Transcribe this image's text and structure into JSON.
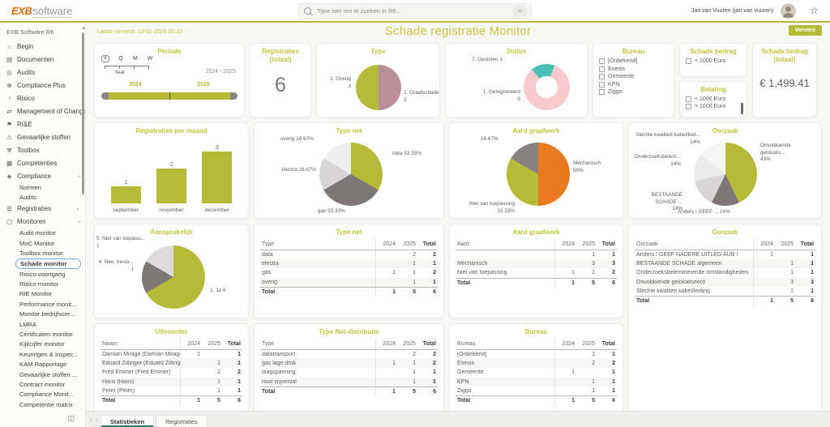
{
  "header": {
    "logo_exb": "EXB",
    "logo_software": "software",
    "search_placeholder": "Type hier om te zoeken in R6...",
    "user_name": "Jan van Vuuren (jan van vuuren)"
  },
  "sidebar": {
    "title": "EXB Software R6",
    "items": [
      {
        "label": "Begin",
        "icon": "home",
        "level": 0
      },
      {
        "label": "Documenten",
        "icon": "document",
        "level": 0
      },
      {
        "label": "Audits",
        "icon": "audit",
        "level": 0
      },
      {
        "label": "Compliance Plus",
        "icon": "compliance-plus",
        "level": 0
      },
      {
        "label": "Risico",
        "icon": "risk",
        "level": 0
      },
      {
        "label": "Management of Change",
        "icon": "moc",
        "level": 0
      },
      {
        "label": "RI&E",
        "icon": "rie",
        "level": 0
      },
      {
        "label": "Gevaarlijke stoffen",
        "icon": "hazard",
        "level": 0
      },
      {
        "label": "Toolbox",
        "icon": "toolbox",
        "level": 0
      },
      {
        "label": "Competenties",
        "icon": "competences",
        "level": 0
      },
      {
        "label": "Compliance",
        "icon": "compliance",
        "level": 0,
        "chevron": "down"
      },
      {
        "label": "Normen",
        "level": 1
      },
      {
        "label": "Audits",
        "level": 1
      },
      {
        "label": "Registraties",
        "icon": "registrations",
        "level": 0,
        "chevron": "right"
      },
      {
        "label": "Monitoren",
        "icon": "monitors",
        "level": 0,
        "chevron": "down"
      },
      {
        "label": "Audit monitor",
        "level": 1
      },
      {
        "label": "MoC Monitor",
        "level": 1
      },
      {
        "label": "Toolbox monitor",
        "level": 1
      },
      {
        "label": "Schade monitor",
        "level": 1,
        "selected": true
      },
      {
        "label": "Risico voortgang",
        "level": 1
      },
      {
        "label": "Risico monitor",
        "level": 1
      },
      {
        "label": "RIE Monitor",
        "level": 1
      },
      {
        "label": "Performance monit...",
        "level": 1
      },
      {
        "label": "Monitor bedrijfscer...",
        "level": 1
      },
      {
        "label": "LMRA",
        "level": 1
      },
      {
        "label": "Certificaten monitor",
        "level": 1
      },
      {
        "label": "Kijkcijfer monitor",
        "level": 1
      },
      {
        "label": "Keuringen & Inspec...",
        "level": 1
      },
      {
        "label": "KAM Rapportage",
        "level": 1
      },
      {
        "label": "Gevaarlijke stoffen ...",
        "level": 1
      },
      {
        "label": "Contract monitor",
        "level": 1
      },
      {
        "label": "Compliance Monit...",
        "level": 1
      },
      {
        "label": "Competentie matrix",
        "level": 1
      }
    ]
  },
  "main": {
    "last_refreshed": "Laatst ververst: 19-01-2026 00:15",
    "title": "Schade registratie Monitor",
    "refresh": "Ververs"
  },
  "periode": {
    "title": "Periode",
    "scales": [
      "Y",
      "Q",
      "M",
      "W"
    ],
    "selected_scale": "Y",
    "scale_label": "Year",
    "range": "2024 - 2025",
    "left_year": "2024",
    "right_year": "2025"
  },
  "registraties_totaal": {
    "title": "Registraties (totaal)",
    "value": "6"
  },
  "type_pie": {
    "title": "Type",
    "chart": {
      "type": "pie",
      "start": 0,
      "segments": [
        {
          "label": "1. Graafschade",
          "value": 3,
          "color": "#b98e98"
        },
        {
          "label": "2. Overig",
          "value": 3,
          "color": "#b6bb37"
        }
      ]
    },
    "labels": {
      "left": "2. Overig\n3",
      "right": "1. Graafschade\n3"
    }
  },
  "status_donut": {
    "title": "Status",
    "chart": {
      "type": "donut",
      "donut": true,
      "start": -40,
      "segments": [
        {
          "label": "7. Gesloten",
          "value": 1,
          "color": "#49c0b6"
        },
        {
          "label": "1. Geregistreerd",
          "value": 5,
          "color": "#f8cacd"
        }
      ]
    },
    "labels": {
      "top": "7. Gesloten 1",
      "left": "1. Geregistreerd\n5"
    }
  },
  "bureau_filter": {
    "title": "Bureau",
    "options": [
      "[Onbekend]",
      "Enexis",
      "Gemeente",
      "KPN",
      "Ziggo"
    ]
  },
  "schadebedrag_filter": {
    "title": "Schade bedrag",
    "options": [
      "< 1000 Euro"
    ]
  },
  "betaling_filter": {
    "title": "Betaling",
    "options": [
      "< 1000 Euro",
      "> 1000 Euro"
    ]
  },
  "schadebedrag_totaal": {
    "title": "Schade bedrag (totaal)",
    "value": "€ 1,499.41"
  },
  "registraties_per_maand": {
    "title": "Registraties per maand",
    "chart": {
      "type": "bar",
      "categories": [
        "september",
        "november",
        "december"
      ],
      "values": [
        1,
        2,
        3
      ],
      "color": "#b6bb37",
      "max": 3
    }
  },
  "type_net_pie": {
    "title": "Type net",
    "chart": {
      "type": "pie",
      "start": 0,
      "segments": [
        {
          "label": "data",
          "value": 2,
          "color": "#b6bb37"
        },
        {
          "label": "gas",
          "value": 2,
          "color": "#7d7778"
        },
        {
          "label": "electra",
          "value": 1,
          "color": "#d8d5d6"
        },
        {
          "label": "overig",
          "value": 1,
          "color": "#f0efef"
        }
      ]
    },
    "labels": {
      "tl": "overig 16.67%",
      "right": "data 33.33%",
      "left": "electra 16.67%",
      "bottom": "gas 33.33%"
    }
  },
  "aard_pie": {
    "title": "Aard graafwerk",
    "chart": {
      "type": "pie",
      "start": 0,
      "segments": [
        {
          "label": "Mechanisch",
          "value": 3,
          "color": "#e8791e"
        },
        {
          "label": "Niet van toepassing",
          "value": 2,
          "color": "#b6bb37"
        },
        {
          "label": "",
          "value": 1,
          "color": "#878182"
        }
      ]
    },
    "labels": {
      "tl": "16.67%",
      "right": "Mechanisch\n50%",
      "bl": "Niet van toepassing\n33.33%"
    }
  },
  "oorzaak_pie": {
    "title": "Oorzaak",
    "chart": {
      "type": "pie",
      "start": 0,
      "segments": [
        {
          "label": "Onvoldoende gelokaliseerd",
          "value": 3,
          "color": "#b6bb37"
        },
        {
          "label": "Anders ! GEEF ...",
          "value": 1,
          "color": "#7d7778"
        },
        {
          "label": "BESTAANDE SCHADE ...",
          "value": 1,
          "color": "#d8d5d6"
        },
        {
          "label": "Onderzoeksbelem...",
          "value": 1,
          "color": "#ecebeb"
        },
        {
          "label": "Slechte kwaliteit kabel/leiding",
          "value": 1,
          "color": "#f6f5f5"
        }
      ]
    },
    "labels": {
      "tl": "Slechte kwaliteit kabel/leid...\n14%",
      "l": "Onderzoeksbelem...\n14%",
      "right": "Onvoldoende gelokalis...\n43%",
      "bl": "BESTAANDE SCHADE ...\n14%",
      "b": "Anders ! GEEF ... 14%"
    }
  },
  "aansprakelijk_pie": {
    "title": "Aansprakelijk",
    "chart": {
      "type": "pie",
      "start": 0,
      "segments": [
        {
          "label": "1. Ja",
          "value": 4,
          "color": "#b6bb37"
        },
        {
          "label": "4. Nee, besta...",
          "value": 1,
          "color": "#7d7778"
        },
        {
          "label": "5. Niet van toepass...",
          "value": 1,
          "color": "#dcdadb"
        }
      ]
    },
    "labels": {
      "tl": "5. Niet van toepass...\n1",
      "l": "4. Nee, besta...\n1",
      "r": "1. Ja 4"
    }
  },
  "type_net_table": {
    "title": "Type net",
    "headers": [
      "Type",
      "2024",
      "2025",
      "Total"
    ],
    "rows": [
      [
        "data",
        "",
        "2",
        "2"
      ],
      [
        "electra",
        "",
        "1",
        "1"
      ],
      [
        "gas",
        "1",
        "1",
        "2"
      ],
      [
        "overig",
        "",
        "1",
        "1"
      ]
    ],
    "total": [
      "Total",
      "1",
      "5",
      "6"
    ]
  },
  "aard_table": {
    "title": "Aard graafwerk",
    "headers": [
      "Aard",
      "2024",
      "2025",
      "Total"
    ],
    "rows": [
      [
        "",
        "",
        "1",
        "1"
      ],
      [
        "Mechanisch",
        "",
        "3",
        "3"
      ],
      [
        "Niet van toepassing",
        "1",
        "1",
        "2"
      ]
    ],
    "total": [
      "Total",
      "1",
      "5",
      "6"
    ]
  },
  "oorzaak_table": {
    "title": "Oorzaak",
    "headers": [
      "Oorzaak",
      "2024",
      "2025",
      "Total"
    ],
    "rows": [
      [
        "Anders ! GEEF NADERE UITLEG AUB !",
        "1",
        "",
        "1"
      ],
      [
        "BESTAANDE SCHADE algemeen",
        "",
        "1",
        "1"
      ],
      [
        "Onderzoeksbelemmerende omstandigheden",
        "",
        "1",
        "1"
      ],
      [
        "Onvoldoende gelokaliseerd",
        "",
        "3",
        "3"
      ],
      [
        "Slechte kwaliteit kabel/leiding",
        "",
        "1",
        "1"
      ]
    ],
    "total": [
      "Total",
      "1",
      "5",
      "6"
    ]
  },
  "uitvoerder_table": {
    "title": "Uitvoerder",
    "headers": [
      "Naam",
      "2024",
      "2025",
      "Total"
    ],
    "rows": [
      [
        "Damian Mirage (Damian Mirage)",
        "1",
        "",
        "1"
      ],
      [
        "Eduard Zillinger (Eduard Zillinger)",
        "",
        "1",
        "1"
      ],
      [
        "Fred Emmer (Fred Emmer)",
        "",
        "2",
        "2"
      ],
      [
        "Hans (Hans)",
        "",
        "1",
        "1"
      ],
      [
        "Peter (Peter)",
        "",
        "1",
        "1"
      ]
    ],
    "total": [
      "Total",
      "1",
      "5",
      "6"
    ]
  },
  "type_net_dist_table": {
    "title": "Type Net-distributie",
    "headers": [
      "Type",
      "2024",
      "2025",
      "Total"
    ],
    "rows": [
      [
        "datatransport",
        "",
        "2",
        "2"
      ],
      [
        "gas lage druk",
        "1",
        "1",
        "2"
      ],
      [
        "laagspanning",
        "",
        "1",
        "1"
      ],
      [
        "riool vrijverval",
        "",
        "1",
        "1"
      ]
    ],
    "total": [
      "Total",
      "1",
      "5",
      "6"
    ]
  },
  "bureau_table": {
    "title": "Bureau",
    "headers": [
      "Bureau",
      "2024",
      "2025",
      "Total"
    ],
    "rows": [
      [
        "[Onbekend]",
        "",
        "1",
        "1"
      ],
      [
        "Enexis",
        "",
        "2",
        "2"
      ],
      [
        "Gemeente",
        "1",
        "",
        "1"
      ],
      [
        "KPN",
        "",
        "1",
        "1"
      ],
      [
        "Ziggo",
        "",
        "1",
        "1"
      ]
    ],
    "total": [
      "Total",
      "1",
      "5",
      "6"
    ]
  },
  "tabs": {
    "items": [
      {
        "label": "Statistieken",
        "active": true
      },
      {
        "label": "Registraties",
        "active": false
      }
    ]
  }
}
